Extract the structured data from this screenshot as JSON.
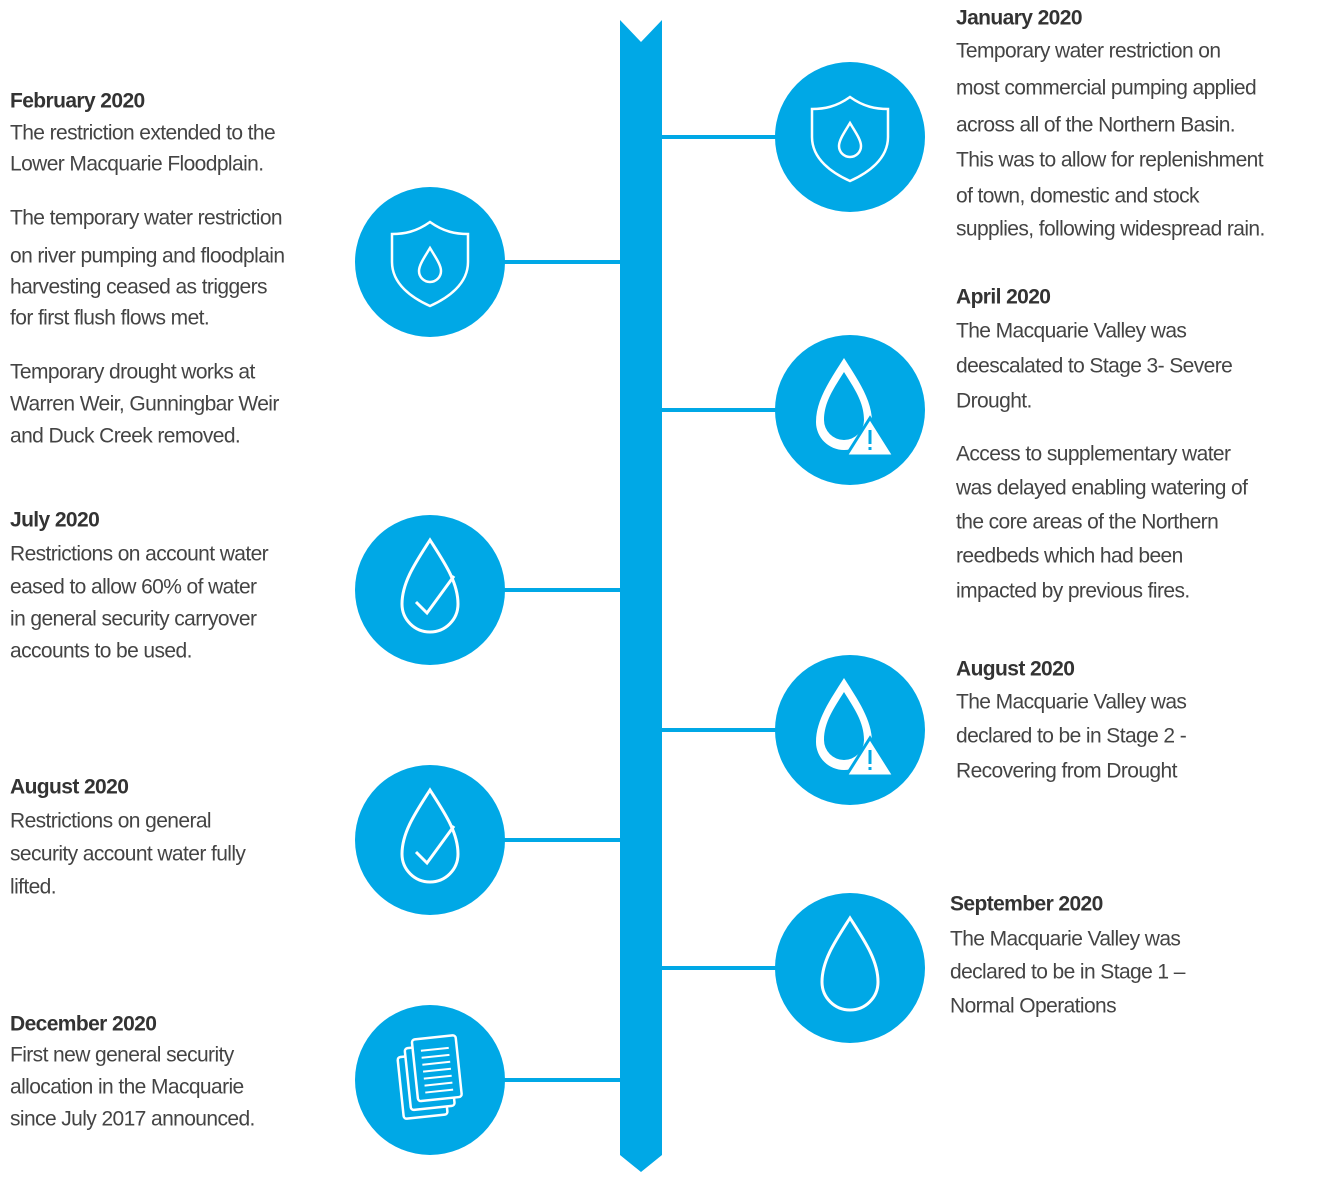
{
  "events": [
    {
      "date": "February 2020",
      "paragraphs": [
        [
          "The restriction extended to the",
          "Lower Macquarie Floodplain."
        ],
        [
          "The temporary water restriction",
          "on river pumping and floodplain",
          "harvesting ceased as triggers",
          "for first flush flows met."
        ],
        [
          "Temporary drought works at",
          "Warren Weir, Gunningbar Weir",
          "and Duck Creek removed."
        ]
      ]
    },
    {
      "date": "July 2020",
      "paragraphs": [
        [
          "Restrictions on account water",
          "eased to allow 60% of water",
          "in general security carryover",
          "accounts to be used."
        ]
      ]
    },
    {
      "date": "August 2020",
      "paragraphs": [
        [
          "Restrictions on general",
          "security account water fully",
          "lifted."
        ]
      ]
    },
    {
      "date": "December 2020",
      "paragraphs": [
        [
          "First new general security",
          "allocation in the Macquarie",
          "since July 2017 announced."
        ]
      ]
    },
    {
      "date": "January 2020",
      "paragraphs": [
        [
          "Temporary water restriction on",
          "most commercial pumping applied",
          "across all of the Northern Basin.",
          "This was to allow for replenishment",
          "of town, domestic and stock",
          "supplies, following widespread rain."
        ]
      ]
    },
    {
      "date": "April 2020",
      "paragraphs": [
        [
          "The Macquarie Valley was",
          "deescalated to Stage 3- Severe",
          "Drought."
        ],
        [
          "Access to supplementary water",
          "was delayed enabling watering of",
          "the core areas of the Northern",
          "reedbeds which had been",
          "impacted by previous fires."
        ]
      ]
    },
    {
      "date": "August 2020",
      "paragraphs": [
        [
          "The Macquarie Valley was",
          "declared to be in Stage 2 -",
          "Recovering from Drought"
        ]
      ]
    },
    {
      "date": "September 2020",
      "paragraphs": [
        [
          "The Macquarie Valley was",
          "declared to be in Stage 1 –",
          "Normal Operations"
        ]
      ]
    }
  ]
}
